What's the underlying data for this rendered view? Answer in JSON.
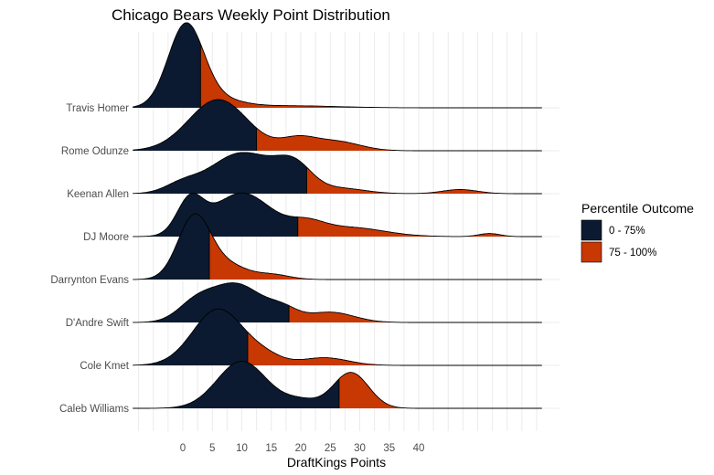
{
  "chart_data": {
    "type": "ridgeline",
    "title": "Chicago Bears Weekly Point Distribution",
    "xlabel": "DraftKings Points",
    "ylabel": "",
    "xlim": [
      -8.5,
      61
    ],
    "x_ticks": [
      0,
      5,
      10,
      15,
      20,
      25,
      30,
      35,
      40
    ],
    "grid": true,
    "legend": {
      "title": "Percentile Outcome",
      "position": "right",
      "entries": [
        {
          "label": "0 - 75%",
          "color": "#0b1a30"
        },
        {
          "label": "75 - 100%",
          "color": "#c83803"
        }
      ]
    },
    "series": [
      {
        "name": "Travis Homer",
        "p75": 3,
        "peaks": [
          [
            0.5,
            3.0,
            1.6
          ],
          [
            6,
            4,
            0.15
          ],
          [
            18,
            8,
            0.04
          ]
        ]
      },
      {
        "name": "Rome Odunze",
        "p75": 12.5,
        "peaks": [
          [
            6,
            5,
            1.0
          ],
          [
            19.5,
            3,
            0.22
          ],
          [
            26,
            4,
            0.18
          ]
        ]
      },
      {
        "name": "Keenan Allen",
        "p75": 21,
        "peaks": [
          [
            0,
            3,
            0.2
          ],
          [
            7,
            4,
            0.3
          ],
          [
            12,
            5,
            0.62
          ],
          [
            19,
            3,
            0.45
          ],
          [
            27,
            4,
            0.1
          ],
          [
            47,
            3,
            0.08
          ]
        ]
      },
      {
        "name": "DJ Moore",
        "p75": 19.5,
        "peaks": [
          [
            1.2,
            2.2,
            0.65
          ],
          [
            10,
            5,
            0.85
          ],
          [
            21,
            3,
            0.2
          ],
          [
            28,
            6,
            0.18
          ],
          [
            52,
            1.8,
            0.06
          ]
        ]
      },
      {
        "name": "Darrynton Evans",
        "p75": 4.5,
        "peaks": [
          [
            2,
            2.8,
            1.25
          ],
          [
            8,
            3,
            0.25
          ],
          [
            15,
            3,
            0.1
          ]
        ]
      },
      {
        "name": "D'Andre Swift",
        "p75": 18,
        "peaks": [
          [
            2,
            3,
            0.3
          ],
          [
            9,
            4.5,
            0.75
          ],
          [
            17,
            2.5,
            0.2
          ],
          [
            25,
            4,
            0.2
          ]
        ]
      },
      {
        "name": "Cole Kmet",
        "p75": 11,
        "peaks": [
          [
            6,
            4.3,
            1.1
          ],
          [
            14,
            3,
            0.15
          ],
          [
            24,
            4,
            0.15
          ]
        ]
      },
      {
        "name": "Caleb Williams",
        "p75": 26.5,
        "peaks": [
          [
            10,
            4.2,
            0.92
          ],
          [
            20,
            3,
            0.15
          ],
          [
            28.5,
            3,
            0.7
          ]
        ]
      }
    ]
  }
}
